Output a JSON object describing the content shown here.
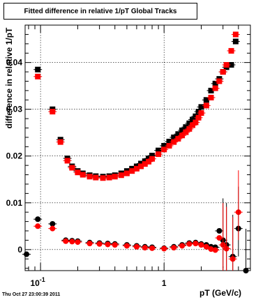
{
  "chart_data": {
    "type": "scatter",
    "title": "Fitted difference in relative 1/pT  Global Tracks",
    "xlabel": "pT (GeV/c)",
    "ylabel": "difference in relative 1/pT",
    "x_scale": "log",
    "xlim": [
      0.075,
      5.0
    ],
    "ylim": [
      -0.0045,
      0.048
    ],
    "grid": true,
    "x_tick_labels": [
      {
        "value": 0.1,
        "label": "10^-1"
      },
      {
        "value": 1,
        "label": "1"
      }
    ],
    "y_tick_labels": [
      {
        "value": 0,
        "label": "0"
      },
      {
        "value": 0.01,
        "label": "0.01"
      },
      {
        "value": 0.02,
        "label": "0.02"
      },
      {
        "value": 0.03,
        "label": "0.03"
      },
      {
        "value": 0.04,
        "label": "0.04"
      }
    ],
    "series": [
      {
        "marker": "square",
        "color": "#000000",
        "x": [
          0.095,
          0.125,
          0.145,
          0.165,
          0.18,
          0.2,
          0.22,
          0.25,
          0.28,
          0.32,
          0.36,
          0.4,
          0.45,
          0.5,
          0.55,
          0.6,
          0.65,
          0.7,
          0.75,
          0.8,
          0.9,
          1.0,
          1.1,
          1.2,
          1.3,
          1.4,
          1.5,
          1.6,
          1.7,
          1.8,
          1.9,
          2.0,
          2.2,
          2.4,
          2.6,
          2.8,
          3.0,
          3.2,
          3.5,
          3.8
        ],
        "y": [
          0.0385,
          0.03,
          0.0235,
          0.0195,
          0.0178,
          0.0168,
          0.0163,
          0.0159,
          0.0157,
          0.0156,
          0.0157,
          0.0159,
          0.0163,
          0.0168,
          0.0173,
          0.0178,
          0.0184,
          0.0189,
          0.0195,
          0.0201,
          0.0212,
          0.0222,
          0.0231,
          0.024,
          0.0247,
          0.0255,
          0.0262,
          0.027,
          0.0278,
          0.0285,
          0.0295,
          0.0305,
          0.032,
          0.034,
          0.0355,
          0.0365,
          0.038,
          0.039,
          0.0395,
          0.0445
        ]
      },
      {
        "marker": "square",
        "color": "#ff0000",
        "x": [
          0.095,
          0.125,
          0.145,
          0.165,
          0.18,
          0.2,
          0.22,
          0.25,
          0.28,
          0.32,
          0.36,
          0.4,
          0.45,
          0.5,
          0.55,
          0.6,
          0.65,
          0.7,
          0.75,
          0.8,
          0.9,
          1.0,
          1.1,
          1.2,
          1.3,
          1.4,
          1.5,
          1.6,
          1.7,
          1.8,
          1.9,
          2.0,
          2.2,
          2.4,
          2.6,
          2.8,
          3.0,
          3.2,
          3.5,
          3.8
        ],
        "y": [
          0.037,
          0.0295,
          0.023,
          0.019,
          0.0175,
          0.0165,
          0.016,
          0.0156,
          0.0154,
          0.0153,
          0.0154,
          0.0156,
          0.0159,
          0.0163,
          0.0168,
          0.0173,
          0.0178,
          0.0183,
          0.0188,
          0.0194,
          0.0204,
          0.0214,
          0.0222,
          0.023,
          0.0237,
          0.0244,
          0.0251,
          0.0258,
          0.0266,
          0.0272,
          0.0282,
          0.0292,
          0.0308,
          0.0325,
          0.0345,
          0.036,
          0.038,
          0.0395,
          0.0425,
          0.046
        ]
      },
      {
        "marker": "circle",
        "color": "#000000",
        "x": [
          0.077,
          0.095,
          0.125,
          0.16,
          0.18,
          0.2,
          0.25,
          0.3,
          0.35,
          0.4,
          0.5,
          0.6,
          0.7,
          0.8,
          1.0,
          1.2,
          1.4,
          1.6,
          1.8,
          2.0,
          2.2,
          2.4,
          2.6,
          2.8,
          3.0,
          3.2,
          3.6,
          4.0,
          4.6
        ],
        "y": [
          -0.001,
          0.0065,
          0.0055,
          0.002,
          0.0019,
          0.0018,
          0.0015,
          0.0014,
          0.0013,
          0.0012,
          0.001,
          0.0008,
          0.0006,
          0.0005,
          0.0003,
          0.0006,
          0.001,
          0.0014,
          0.0015,
          0.0012,
          0.001,
          0.0006,
          0.0005,
          0.004,
          0.002,
          0.001,
          -0.0015,
          0.0045,
          -0.0045
        ]
      },
      {
        "marker": "circle",
        "color": "#ff0000",
        "x": [
          0.095,
          0.125,
          0.16,
          0.18,
          0.2,
          0.25,
          0.3,
          0.35,
          0.4,
          0.5,
          0.6,
          0.7,
          0.8,
          1.0,
          1.2,
          1.4,
          1.6,
          1.8,
          2.0,
          2.2,
          2.4,
          2.6,
          2.8,
          3.0,
          3.2,
          3.6,
          4.0
        ],
        "y": [
          0.005,
          0.0045,
          0.0018,
          0.0017,
          0.0016,
          0.0013,
          0.0012,
          0.0011,
          0.001,
          0.0008,
          0.0006,
          0.0004,
          0.0003,
          0.0002,
          0.0004,
          0.0008,
          0.0012,
          0.0013,
          0.001,
          0.0006,
          0.0001,
          -0.0001,
          0.0025,
          0.001,
          0.0002,
          -0.002,
          0.008
        ]
      }
    ]
  },
  "footer": {
    "timestamp": "Thu Oct 27 23:00:39 2011"
  }
}
